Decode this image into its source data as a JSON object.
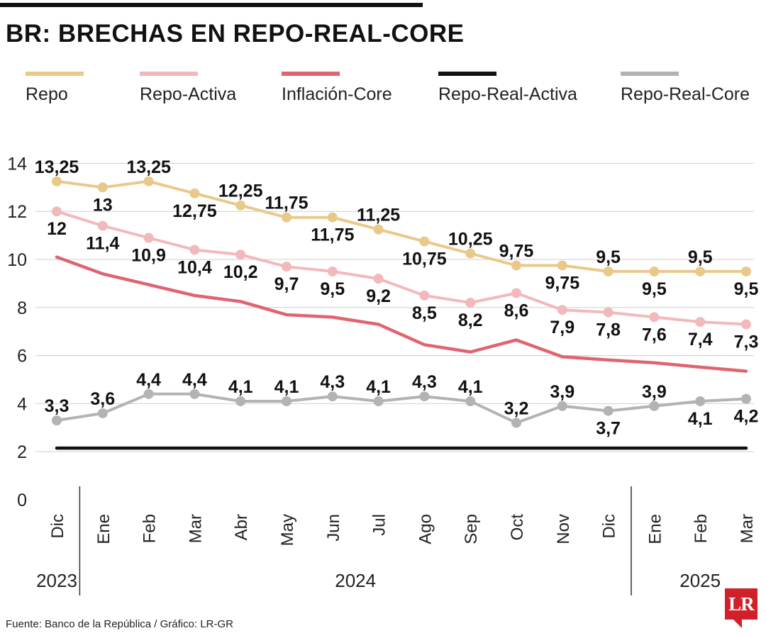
{
  "header": {
    "title": "BR: BRECHAS EN REPO-REAL-CORE"
  },
  "footer": {
    "source": "Fuente: Banco de la República / Gráfico: LR-GR"
  },
  "logo": {
    "text": "LR"
  },
  "chart_data": {
    "type": "line",
    "title": "BR: BRECHAS EN REPO-REAL-CORE",
    "xlabel": "",
    "ylabel": "",
    "ylim": [
      0,
      14
    ],
    "yticks": [
      0,
      2,
      4,
      6,
      8,
      10,
      12,
      14
    ],
    "grid": true,
    "legend_position": "top",
    "categories": [
      "Dic",
      "Ene",
      "Feb",
      "Mar",
      "Abr",
      "May",
      "Jun",
      "Jul",
      "Ago",
      "Sep",
      "Oct",
      "Nov",
      "Dic",
      "Ene",
      "Feb",
      "Mar"
    ],
    "year_groups": [
      {
        "label": "2023",
        "start": 0,
        "end": 0
      },
      {
        "label": "2024",
        "start": 1,
        "end": 12
      },
      {
        "label": "2025",
        "start": 13,
        "end": 15
      }
    ],
    "series": [
      {
        "name": "Repo",
        "color": "#e8c98a",
        "markers": true,
        "values": [
          13.25,
          13,
          13.25,
          12.75,
          12.25,
          11.75,
          11.75,
          11.25,
          10.75,
          10.25,
          9.75,
          9.75,
          9.5,
          9.5,
          9.5,
          9.5
        ],
        "labels": [
          "13,25",
          "13",
          "13,25",
          "12,75",
          "12,25",
          "11,75",
          "11,75",
          "11,25",
          "10,75",
          "10,25",
          "9,75",
          "9,75",
          "9,5",
          "9,5",
          "9,5",
          "9,5"
        ],
        "label_pos": [
          "above",
          "below",
          "above",
          "below",
          "above",
          "above",
          "below",
          "above",
          "below",
          "above",
          "above",
          "below",
          "above",
          "below",
          "above",
          "below"
        ]
      },
      {
        "name": "Repo-Activa",
        "color": "#f2b9bc",
        "markers": true,
        "values": [
          12,
          11.4,
          10.9,
          10.4,
          10.2,
          9.7,
          9.5,
          9.2,
          8.5,
          8.2,
          8.6,
          7.9,
          7.8,
          7.6,
          7.4,
          7.3
        ],
        "labels": [
          "12",
          "11,4",
          "10,9",
          "10,4",
          "10,2",
          "9,7",
          "9,5",
          "9,2",
          "8,5",
          "8,2",
          "8,6",
          "7,9",
          "7,8",
          "7,6",
          "7,4",
          "7,3"
        ],
        "label_pos": [
          "below",
          "below",
          "below",
          "below",
          "below",
          "below",
          "below",
          "below",
          "below",
          "below",
          "below",
          "below",
          "below",
          "below",
          "below",
          "below"
        ]
      },
      {
        "name": "Inflación-Core",
        "color": "#e0646f",
        "markers": false,
        "values": [
          10.1,
          9.4,
          8.95,
          8.5,
          8.25,
          7.7,
          7.6,
          7.3,
          6.45,
          6.15,
          6.65,
          5.95,
          5.82,
          5.7,
          5.52,
          5.35
        ],
        "labels": [],
        "label_pos": []
      },
      {
        "name": "Repo-Real-Activa",
        "color": "#111111",
        "markers": false,
        "values": [
          2.15,
          2.15,
          2.15,
          2.15,
          2.15,
          2.15,
          2.15,
          2.15,
          2.15,
          2.15,
          2.15,
          2.15,
          2.15,
          2.15,
          2.15,
          2.15
        ],
        "labels": [],
        "label_pos": []
      },
      {
        "name": "Repo-Real-Core",
        "color": "#b3b3b3",
        "markers": true,
        "values": [
          3.3,
          3.6,
          4.4,
          4.4,
          4.1,
          4.1,
          4.3,
          4.1,
          4.3,
          4.1,
          3.2,
          3.9,
          3.7,
          3.9,
          4.1,
          4.2
        ],
        "labels": [
          "3,3",
          "3,6",
          "4,4",
          "4,4",
          "4,1",
          "4,1",
          "4,3",
          "4,1",
          "4,3",
          "4,1",
          "3,2",
          "3,9",
          "3,7",
          "3,9",
          "4,1",
          "4,2"
        ],
        "label_pos": [
          "above",
          "above",
          "above",
          "above",
          "above",
          "above",
          "above",
          "above",
          "above",
          "above",
          "above",
          "above",
          "below",
          "above",
          "below",
          "below"
        ]
      }
    ]
  }
}
